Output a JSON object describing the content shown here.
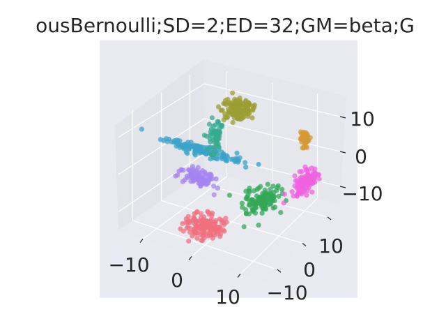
{
  "chart_data": {
    "type": "scatter",
    "projection": "3d",
    "title": "ousBernoulli;SD=2;ED=32;GM=beta;G",
    "xlabel": "",
    "ylabel": "",
    "zlabel": "",
    "x_ticks": [
      "−10",
      "0",
      "10"
    ],
    "y_ticks": [
      "−10",
      "0",
      "10"
    ],
    "z_ticks": [
      "−10",
      "0",
      "10"
    ],
    "xlim": [
      -15,
      15
    ],
    "ylim": [
      -15,
      15
    ],
    "zlim": [
      -15,
      15
    ],
    "grid": true,
    "legend": "none",
    "background_color": "#eaeaf2",
    "clusters": [
      {
        "color": "#f0707f",
        "center": [
          0,
          -10,
          -10
        ],
        "spread": [
          3.5,
          3.5,
          1.6
        ],
        "count": 150
      },
      {
        "color": "#33a857",
        "center": [
          8,
          -3,
          -4
        ],
        "spread": [
          2.5,
          4.5,
          2.5
        ],
        "count": 120
      },
      {
        "color": "#f062e0",
        "center": [
          13,
          5,
          -2
        ],
        "spread": [
          1.5,
          3.5,
          2.0
        ],
        "count": 110
      },
      {
        "color": "#d49a33",
        "center": [
          10,
          10,
          5
        ],
        "spread": [
          0.8,
          1.2,
          2.5
        ],
        "count": 50
      },
      {
        "color": "#9b9e33",
        "center": [
          -2,
          6,
          12
        ],
        "spread": [
          2.5,
          2.5,
          2.5
        ],
        "count": 130
      },
      {
        "color": "#3ba3ca",
        "center": [
          -8,
          3,
          0
        ],
        "spread": [
          8,
          1.2,
          1.0
        ],
        "count": 130
      },
      {
        "color": "#35ab8f",
        "center": [
          -4,
          1,
          7
        ],
        "spread": [
          1.2,
          1.2,
          4.0
        ],
        "count": 60
      },
      {
        "color": "#a684f0",
        "center": [
          -6,
          -2,
          -4
        ],
        "spread": [
          3.0,
          1.5,
          1.5
        ],
        "count": 100
      }
    ]
  }
}
